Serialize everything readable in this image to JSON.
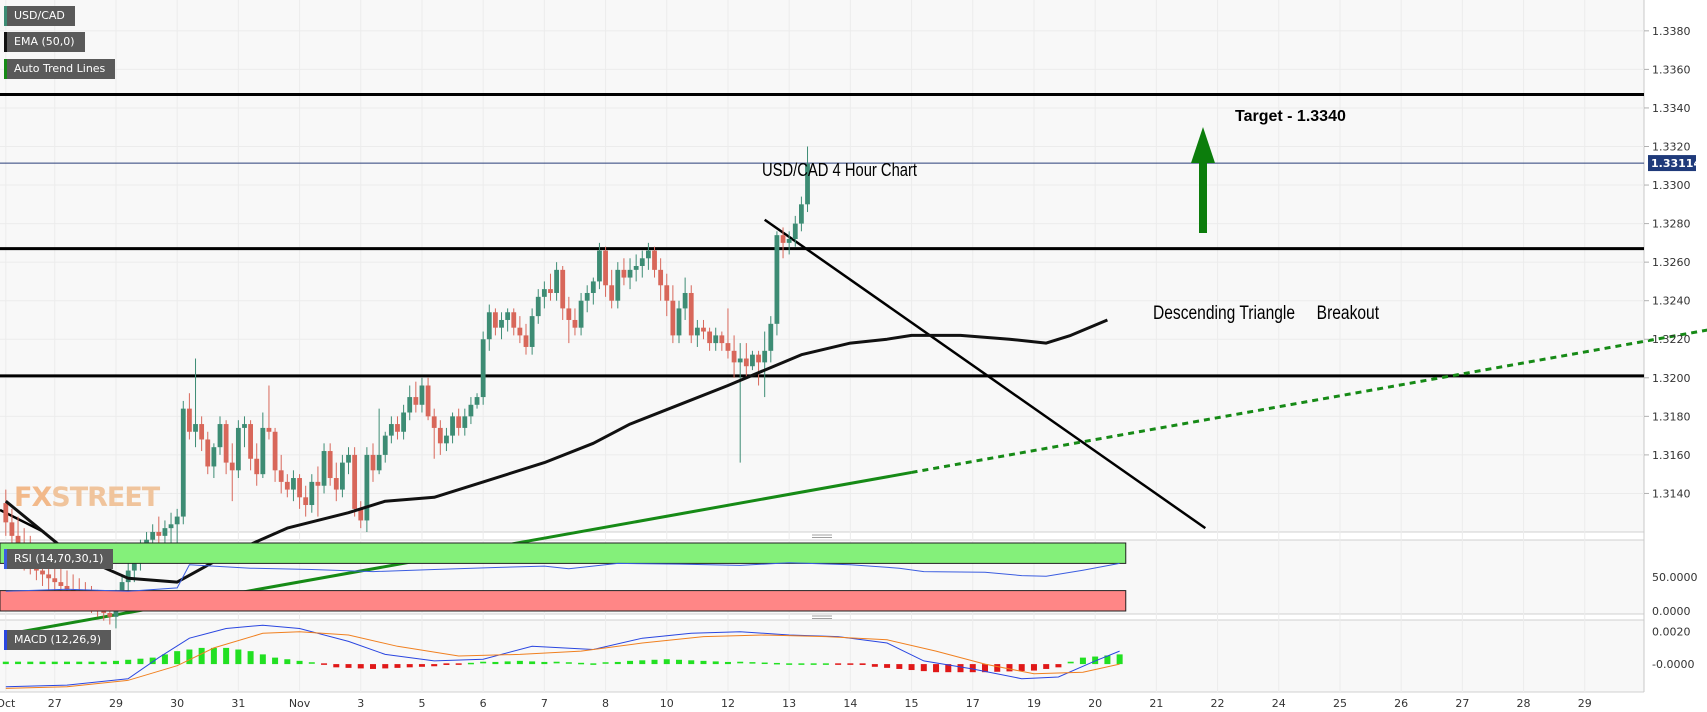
{
  "tags": {
    "symbol": "USD/CAD",
    "ema": "EMA (50,0)",
    "trend": "Auto Trend Lines",
    "rsi": "RSI (14,70,30,1)",
    "macd": "MACD (12,26,9)"
  },
  "annotations": {
    "chart_title": "USD/CAD  4 Hour Chart",
    "target": "Target - 1.3340",
    "pattern": "Descending Triangle     Breakout"
  },
  "watermark": {
    "fx": "FX",
    "street": "STREET"
  },
  "colors": {
    "bull": "#3d8c74",
    "bear": "#d8675a",
    "ema": "#111111",
    "trend": "#168a16",
    "arrow": "#0c7d0c",
    "rsi_line": "#3b5de0",
    "rsi_ob": "#84f07a",
    "rsi_os": "#ff8686",
    "macd_line": "#2a46e0",
    "signal_line": "#f08020",
    "hist_pos": "#22e022",
    "hist_neg": "#e01818"
  },
  "chart_data": {
    "type": "candlestick",
    "title": "USD/CAD  4 Hour Chart",
    "price_axis": {
      "min": 1.312,
      "max": 1.3396,
      "ticks": [
        "1.3140",
        "1.3160",
        "1.3180",
        "1.3200",
        "1.3220",
        "1.3240",
        "1.3260",
        "1.3280",
        "1.3300",
        "1.3320",
        "1.3340",
        "1.3360",
        "1.3380"
      ]
    },
    "current_price": "1.33114",
    "x_labels": [
      "Oct",
      "27",
      "29",
      "30",
      "31",
      "Nov",
      "3",
      "5",
      "6",
      "7",
      "8",
      "10",
      "12",
      "13",
      "14",
      "15",
      "17",
      "19",
      "20",
      "21",
      "22",
      "24",
      "25",
      "26",
      "27",
      "28",
      "29"
    ],
    "x_label_index": [
      0,
      8,
      18,
      28,
      38,
      48,
      58,
      68,
      78,
      88,
      98,
      108,
      118,
      128,
      138,
      148,
      158,
      168,
      178,
      188,
      198,
      208,
      218,
      228,
      238,
      248,
      258
    ],
    "candles": [
      [
        1.3135,
        1.3142,
        1.3118,
        1.3125
      ],
      [
        1.3125,
        1.3132,
        1.311,
        1.3118
      ],
      [
        1.3118,
        1.3128,
        1.3105,
        1.3112
      ],
      [
        1.3112,
        1.3122,
        1.31,
        1.3108
      ],
      [
        1.3108,
        1.3118,
        1.3098,
        1.3104
      ],
      [
        1.3104,
        1.3112,
        1.3095,
        1.31
      ],
      [
        1.31,
        1.311,
        1.3092,
        1.3098
      ],
      [
        1.3098,
        1.3108,
        1.309,
        1.3096
      ],
      [
        1.3096,
        1.3104,
        1.3088,
        1.3094
      ],
      [
        1.3094,
        1.3102,
        1.3086,
        1.3092
      ],
      [
        1.3092,
        1.31,
        1.3085,
        1.309
      ],
      [
        1.309,
        1.3098,
        1.3084,
        1.3088
      ],
      [
        1.3088,
        1.3096,
        1.3082,
        1.3086
      ],
      [
        1.3086,
        1.3094,
        1.308,
        1.3084
      ],
      [
        1.3084,
        1.3092,
        1.3078,
        1.3082
      ],
      [
        1.3082,
        1.309,
        1.3076,
        1.308
      ],
      [
        1.308,
        1.3088,
        1.3074,
        1.3078
      ],
      [
        1.3078,
        1.3086,
        1.3072,
        1.3076
      ],
      [
        1.3076,
        1.309,
        1.307,
        1.3086
      ],
      [
        1.3086,
        1.3098,
        1.308,
        1.3094
      ],
      [
        1.3094,
        1.3104,
        1.3088,
        1.31
      ],
      [
        1.31,
        1.311,
        1.3094,
        1.3106
      ],
      [
        1.3106,
        1.3116,
        1.31,
        1.3112
      ],
      [
        1.3112,
        1.312,
        1.3104,
        1.3116
      ],
      [
        1.3116,
        1.3124,
        1.3108,
        1.312
      ],
      [
        1.312,
        1.3128,
        1.311,
        1.3118
      ],
      [
        1.3118,
        1.3126,
        1.311,
        1.3122
      ],
      [
        1.3122,
        1.313,
        1.3112,
        1.3124
      ],
      [
        1.3124,
        1.3132,
        1.3112,
        1.3128
      ],
      [
        1.3128,
        1.3188,
        1.3124,
        1.3184
      ],
      [
        1.3184,
        1.3192,
        1.3168,
        1.3172
      ],
      [
        1.3172,
        1.321,
        1.3164,
        1.3176
      ],
      [
        1.3176,
        1.318,
        1.3162,
        1.3168
      ],
      [
        1.3168,
        1.3172,
        1.315,
        1.3154
      ],
      [
        1.3154,
        1.3166,
        1.3148,
        1.3164
      ],
      [
        1.3164,
        1.318,
        1.316,
        1.3176
      ],
      [
        1.3176,
        1.3178,
        1.315,
        1.3156
      ],
      [
        1.3156,
        1.3166,
        1.3136,
        1.3152
      ],
      [
        1.3152,
        1.3178,
        1.3148,
        1.3174
      ],
      [
        1.3174,
        1.318,
        1.3164,
        1.3176
      ],
      [
        1.3176,
        1.3178,
        1.3152,
        1.3158
      ],
      [
        1.3158,
        1.3166,
        1.3144,
        1.315
      ],
      [
        1.315,
        1.3182,
        1.3148,
        1.3174
      ],
      [
        1.3174,
        1.3196,
        1.3168,
        1.3172
      ],
      [
        1.3172,
        1.3174,
        1.3146,
        1.3152
      ],
      [
        1.3152,
        1.316,
        1.314,
        1.3146
      ],
      [
        1.3146,
        1.315,
        1.3138,
        1.3142
      ],
      [
        1.3142,
        1.3152,
        1.3136,
        1.3148
      ],
      [
        1.3148,
        1.315,
        1.3132,
        1.3138
      ],
      [
        1.3138,
        1.3144,
        1.3128,
        1.3134
      ],
      [
        1.3134,
        1.315,
        1.313,
        1.3146
      ],
      [
        1.3146,
        1.3154,
        1.3128,
        1.3144
      ],
      [
        1.3144,
        1.3166,
        1.314,
        1.3162
      ],
      [
        1.3162,
        1.3166,
        1.3144,
        1.3148
      ],
      [
        1.3148,
        1.3156,
        1.3136,
        1.3142
      ],
      [
        1.3142,
        1.316,
        1.3138,
        1.3156
      ],
      [
        1.3156,
        1.3164,
        1.315,
        1.316
      ],
      [
        1.316,
        1.3164,
        1.3128,
        1.3132
      ],
      [
        1.3132,
        1.3136,
        1.3122,
        1.3126
      ],
      [
        1.3126,
        1.3164,
        1.312,
        1.316
      ],
      [
        1.316,
        1.3166,
        1.3146,
        1.3152
      ],
      [
        1.3152,
        1.3184,
        1.315,
        1.316
      ],
      [
        1.316,
        1.3172,
        1.3156,
        1.317
      ],
      [
        1.317,
        1.318,
        1.3166,
        1.3176
      ],
      [
        1.3176,
        1.318,
        1.3168,
        1.3172
      ],
      [
        1.3172,
        1.3186,
        1.3168,
        1.3182
      ],
      [
        1.3182,
        1.3196,
        1.3178,
        1.319
      ],
      [
        1.319,
        1.3198,
        1.3182,
        1.3186
      ],
      [
        1.3186,
        1.32,
        1.3182,
        1.3196
      ],
      [
        1.3196,
        1.32,
        1.3178,
        1.318
      ],
      [
        1.318,
        1.3184,
        1.3158,
        1.3174
      ],
      [
        1.3174,
        1.3178,
        1.316,
        1.3166
      ],
      [
        1.3166,
        1.3174,
        1.3162,
        1.317
      ],
      [
        1.317,
        1.3182,
        1.3166,
        1.318
      ],
      [
        1.318,
        1.3184,
        1.317,
        1.3174
      ],
      [
        1.3174,
        1.3184,
        1.317,
        1.318
      ],
      [
        1.318,
        1.319,
        1.3176,
        1.3186
      ],
      [
        1.3186,
        1.3192,
        1.3184,
        1.319
      ],
      [
        1.319,
        1.3224,
        1.3186,
        1.322
      ],
      [
        1.322,
        1.3238,
        1.3214,
        1.3234
      ],
      [
        1.3234,
        1.3236,
        1.3222,
        1.3226
      ],
      [
        1.3226,
        1.3234,
        1.322,
        1.323
      ],
      [
        1.323,
        1.3236,
        1.3224,
        1.3234
      ],
      [
        1.3234,
        1.3236,
        1.3222,
        1.3226
      ],
      [
        1.3226,
        1.3232,
        1.3218,
        1.3222
      ],
      [
        1.3222,
        1.3228,
        1.3212,
        1.3216
      ],
      [
        1.3216,
        1.3236,
        1.3212,
        1.3232
      ],
      [
        1.3232,
        1.3246,
        1.3228,
        1.3242
      ],
      [
        1.3242,
        1.325,
        1.3236,
        1.3246
      ],
      [
        1.3246,
        1.3254,
        1.324,
        1.3244
      ],
      [
        1.3244,
        1.326,
        1.324,
        1.3256
      ],
      [
        1.3256,
        1.3258,
        1.323,
        1.3236
      ],
      [
        1.3236,
        1.3242,
        1.3218,
        1.323
      ],
      [
        1.323,
        1.3236,
        1.3222,
        1.3226
      ],
      [
        1.3226,
        1.3244,
        1.3222,
        1.324
      ],
      [
        1.324,
        1.3248,
        1.3234,
        1.3244
      ],
      [
        1.3244,
        1.3252,
        1.3238,
        1.325
      ],
      [
        1.325,
        1.327,
        1.3246,
        1.3266
      ],
      [
        1.3266,
        1.3268,
        1.3242,
        1.3248
      ],
      [
        1.3248,
        1.3256,
        1.3236,
        1.324
      ],
      [
        1.324,
        1.326,
        1.3236,
        1.3256
      ],
      [
        1.3256,
        1.3262,
        1.3248,
        1.3252
      ],
      [
        1.3252,
        1.3262,
        1.3246,
        1.3256
      ],
      [
        1.3256,
        1.3264,
        1.325,
        1.3258
      ],
      [
        1.3258,
        1.3266,
        1.3252,
        1.3262
      ],
      [
        1.3262,
        1.327,
        1.3256,
        1.3266
      ],
      [
        1.3266,
        1.3268,
        1.3252,
        1.3256
      ],
      [
        1.3256,
        1.3262,
        1.324,
        1.3248
      ],
      [
        1.3248,
        1.3254,
        1.3232,
        1.324
      ],
      [
        1.324,
        1.3248,
        1.3218,
        1.3222
      ],
      [
        1.3222,
        1.324,
        1.3218,
        1.3236
      ],
      [
        1.3236,
        1.3252,
        1.323,
        1.3244
      ],
      [
        1.3244,
        1.3248,
        1.3218,
        1.3222
      ],
      [
        1.3222,
        1.323,
        1.3216,
        1.3226
      ],
      [
        1.3226,
        1.323,
        1.322,
        1.3224
      ],
      [
        1.3224,
        1.3226,
        1.3214,
        1.3218
      ],
      [
        1.3218,
        1.3226,
        1.3214,
        1.3222
      ],
      [
        1.3222,
        1.3224,
        1.3214,
        1.3218
      ],
      [
        1.3218,
        1.3236,
        1.321,
        1.3214
      ],
      [
        1.3214,
        1.3222,
        1.32,
        1.3208
      ],
      [
        1.3208,
        1.3218,
        1.3156,
        1.321
      ],
      [
        1.321,
        1.3218,
        1.32,
        1.3206
      ],
      [
        1.3206,
        1.3214,
        1.3204,
        1.3212
      ],
      [
        1.3212,
        1.3214,
        1.3196,
        1.3208
      ],
      [
        1.3208,
        1.3224,
        1.319,
        1.3214
      ],
      [
        1.3214,
        1.3232,
        1.3208,
        1.3228
      ],
      [
        1.3228,
        1.3276,
        1.3222,
        1.3274
      ],
      [
        1.3274,
        1.3278,
        1.3262,
        1.327
      ],
      [
        1.327,
        1.3276,
        1.3264,
        1.3272
      ],
      [
        1.3272,
        1.3284,
        1.3268,
        1.328
      ],
      [
        1.328,
        1.3294,
        1.3276,
        1.329
      ],
      [
        1.329,
        1.332,
        1.3286,
        1.3311
      ]
    ],
    "ema_50": [
      [
        0,
        1.3136
      ],
      [
        10,
        1.311
      ],
      [
        20,
        1.3096
      ],
      [
        28,
        1.3094
      ],
      [
        36,
        1.3108
      ],
      [
        46,
        1.3122
      ],
      [
        56,
        1.313
      ],
      [
        62,
        1.3136
      ],
      [
        70,
        1.3138
      ],
      [
        78,
        1.3146
      ],
      [
        88,
        1.3156
      ],
      [
        96,
        1.3166
      ],
      [
        102,
        1.3176
      ],
      [
        110,
        1.3186
      ],
      [
        118,
        1.3196
      ],
      [
        124,
        1.3204
      ],
      [
        130,
        1.3212
      ],
      [
        138,
        1.3218
      ],
      [
        144,
        1.322
      ],
      [
        148,
        1.3222
      ],
      [
        156,
        1.3222
      ],
      [
        164,
        1.322
      ],
      [
        170,
        1.3218
      ],
      [
        174,
        1.3222
      ],
      [
        180,
        1.323
      ]
    ],
    "trend_lines": {
      "support_start": [
        0.3,
        1.3067
      ],
      "support_end": [
        289,
        1.3231
      ],
      "support_solid_until": 148,
      "triangle_top_start": [
        124,
        1.3282
      ],
      "triangle_top_end": [
        196,
        1.3122
      ]
    },
    "horizontal_levels": [
      1.3347,
      1.3267,
      1.3201
    ],
    "target": 1.334,
    "rsi": {
      "name": "RSI (14,70,30,1)",
      "ylim": [
        0,
        100
      ],
      "overbought": 70,
      "oversold": 30,
      "tick": "50.0000",
      "tick_zero": "0.0000",
      "values": [
        [
          0,
          29
        ],
        [
          10,
          32
        ],
        [
          20,
          29
        ],
        [
          28,
          34
        ],
        [
          30,
          68
        ],
        [
          40,
          63
        ],
        [
          50,
          61
        ],
        [
          60,
          58
        ],
        [
          70,
          61
        ],
        [
          80,
          64
        ],
        [
          88,
          66
        ],
        [
          92,
          62
        ],
        [
          100,
          70
        ],
        [
          110,
          69
        ],
        [
          120,
          67
        ],
        [
          128,
          71
        ],
        [
          138,
          68
        ],
        [
          146,
          63
        ],
        [
          150,
          58
        ],
        [
          160,
          57
        ],
        [
          166,
          52
        ],
        [
          170,
          51
        ],
        [
          176,
          60
        ],
        [
          182,
          70
        ]
      ]
    },
    "macd": {
      "name": "MACD (12,26,9)",
      "ticks": [
        "0.0020",
        "-0.0000"
      ],
      "ylim": [
        -0.0016,
        0.0026
      ],
      "macd_values": [
        [
          0,
          -0.0014
        ],
        [
          10,
          -0.0013
        ],
        [
          20,
          -0.0009
        ],
        [
          25,
          0.0004
        ],
        [
          30,
          0.0016
        ],
        [
          36,
          0.0022
        ],
        [
          42,
          0.0024
        ],
        [
          48,
          0.0022
        ],
        [
          56,
          0.0014
        ],
        [
          62,
          0.0006
        ],
        [
          70,
          0.0002
        ],
        [
          78,
          0.0003
        ],
        [
          86,
          0.0011
        ],
        [
          96,
          0.0009
        ],
        [
          104,
          0.0016
        ],
        [
          112,
          0.0019
        ],
        [
          120,
          0.002
        ],
        [
          128,
          0.0018
        ],
        [
          136,
          0.0017
        ],
        [
          144,
          0.0013
        ],
        [
          150,
          0.0002
        ],
        [
          158,
          -0.0003
        ],
        [
          166,
          -0.0009
        ],
        [
          172,
          -0.0008
        ],
        [
          178,
          0.0002
        ],
        [
          182,
          0.0008
        ]
      ],
      "signal_values": [
        [
          0,
          -0.0015
        ],
        [
          10,
          -0.0014
        ],
        [
          20,
          -0.001
        ],
        [
          28,
          -0.0001
        ],
        [
          34,
          0.001
        ],
        [
          42,
          0.0019
        ],
        [
          48,
          0.002
        ],
        [
          56,
          0.0018
        ],
        [
          64,
          0.0011
        ],
        [
          74,
          0.0005
        ],
        [
          84,
          0.0006
        ],
        [
          94,
          0.0008
        ],
        [
          104,
          0.0013
        ],
        [
          114,
          0.0017
        ],
        [
          124,
          0.0018
        ],
        [
          134,
          0.0017
        ],
        [
          144,
          0.0015
        ],
        [
          152,
          0.0008
        ],
        [
          160,
          0.0
        ],
        [
          168,
          -0.0006
        ],
        [
          176,
          -0.0005
        ],
        [
          182,
          0.0
        ]
      ],
      "hist_values": [
        [
          18,
          0.0002
        ],
        [
          24,
          0.0004
        ],
        [
          28,
          0.0008
        ],
        [
          32,
          0.001
        ],
        [
          36,
          0.001
        ],
        [
          40,
          0.0008
        ],
        [
          44,
          0.0004
        ],
        [
          48,
          0.0002
        ],
        [
          54,
          -0.0002
        ],
        [
          60,
          -0.0003
        ],
        [
          66,
          -0.0002
        ],
        [
          72,
          -0.0001
        ],
        [
          78,
          0.0001
        ],
        [
          84,
          0.0002
        ],
        [
          90,
          0.0001
        ],
        [
          96,
          0.0
        ],
        [
          102,
          0.0002
        ],
        [
          108,
          0.0003
        ],
        [
          114,
          0.0002
        ],
        [
          120,
          0.0001
        ],
        [
          128,
          0.0
        ],
        [
          134,
          0.0
        ],
        [
          140,
          -0.0001
        ],
        [
          146,
          -0.0003
        ],
        [
          152,
          -0.0005
        ],
        [
          160,
          -0.0005
        ],
        [
          168,
          -0.0004
        ],
        [
          172,
          -0.0002
        ],
        [
          176,
          0.0004
        ],
        [
          182,
          0.0006
        ]
      ]
    }
  }
}
